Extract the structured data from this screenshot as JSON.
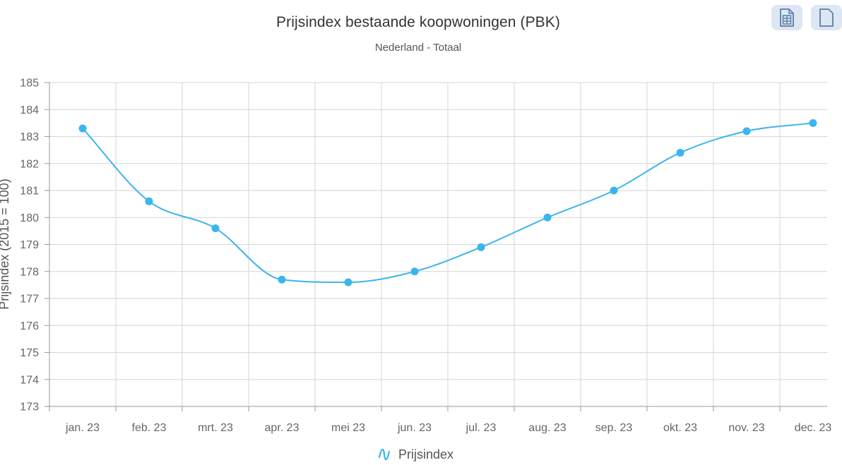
{
  "header": {
    "title": "Prijsindex bestaande koopwoningen (PBK)",
    "subtitle": "Nederland - Totaal"
  },
  "toolbar": {
    "buttons": [
      {
        "name": "table-export-button",
        "icon": "spreadsheet-icon"
      },
      {
        "name": "document-export-button",
        "icon": "document-icon"
      }
    ]
  },
  "colors": {
    "series": "#3bb5ec",
    "grid": "#d6d6d6",
    "axis_text": "#666666",
    "title_text": "#333333",
    "button_bg": "#dde7f3",
    "button_icon": "#5a7ea8"
  },
  "chart_data": {
    "type": "line",
    "title": "Prijsindex bestaande koopwoningen (PBK)",
    "subtitle": "Nederland - Totaal",
    "xlabel": "",
    "ylabel": "Prijsindex (2015 = 100)",
    "ylim": [
      173,
      185
    ],
    "yticks": [
      173,
      174,
      175,
      176,
      177,
      178,
      179,
      180,
      181,
      182,
      183,
      184,
      185
    ],
    "grid": true,
    "legend_position": "bottom-center",
    "categories": [
      "jan. 23",
      "feb. 23",
      "mrt. 23",
      "apr. 23",
      "mei 23",
      "jun. 23",
      "jul. 23",
      "aug. 23",
      "sep. 23",
      "okt. 23",
      "nov. 23",
      "dec. 23"
    ],
    "series": [
      {
        "name": "Prijsindex",
        "values": [
          183.3,
          180.6,
          179.6,
          177.7,
          177.6,
          178.0,
          178.9,
          180.0,
          181.0,
          182.4,
          183.2,
          183.5
        ]
      }
    ]
  }
}
